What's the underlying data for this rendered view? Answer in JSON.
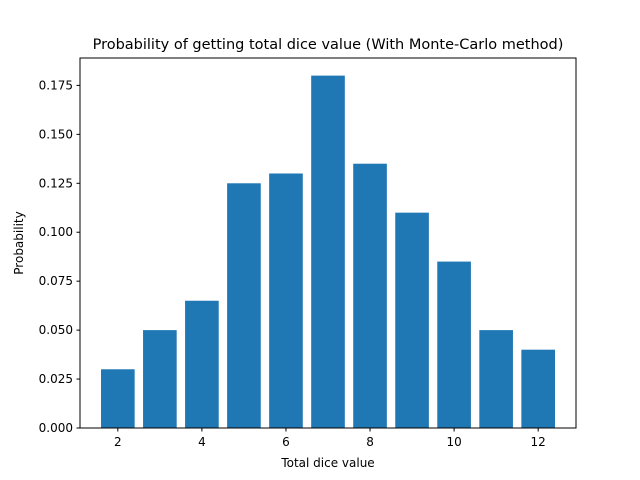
{
  "chart_data": {
    "type": "bar",
    "title": "Probability of getting total dice value (With Monte-Carlo method)",
    "xlabel": "Total dice value",
    "ylabel": "Probability",
    "x": [
      2,
      3,
      4,
      5,
      6,
      7,
      8,
      9,
      10,
      11,
      12
    ],
    "values": [
      0.03,
      0.05,
      0.065,
      0.125,
      0.13,
      0.18,
      0.135,
      0.11,
      0.085,
      0.05,
      0.04
    ],
    "xlim": [
      1.1,
      12.9
    ],
    "ylim": [
      0,
      0.189
    ],
    "xticks": [
      2,
      4,
      6,
      8,
      10,
      12
    ],
    "xtick_labels": [
      "2",
      "4",
      "6",
      "8",
      "10",
      "12"
    ],
    "yticks": [
      0,
      0.025,
      0.05,
      0.075,
      0.1,
      0.125,
      0.15,
      0.175
    ],
    "ytick_labels": [
      "0.000",
      "0.025",
      "0.050",
      "0.075",
      "0.100",
      "0.125",
      "0.150",
      "0.175"
    ],
    "bar_color": "#1f77b4",
    "grid": false,
    "legend": null
  }
}
